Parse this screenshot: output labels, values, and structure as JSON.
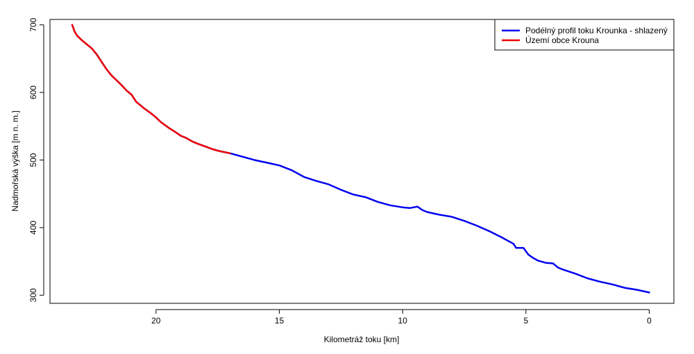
{
  "chart_data": {
    "type": "line",
    "xlabel": "Kilometráž toku [km]",
    "ylabel": "Nadmořská výška [m n. m.]",
    "xlim": [
      24.3,
      -1.0
    ],
    "ylim": [
      288,
      708
    ],
    "x_reversed": true,
    "x_ticks": [
      20,
      15,
      10,
      5,
      0
    ],
    "y_ticks": [
      300,
      400,
      500,
      600,
      700
    ],
    "grid": false,
    "legend_position": "top-right",
    "series": [
      {
        "name": "Podélný profil toku Krounka - shlazený",
        "color": "#0000ee",
        "x": [
          23.4,
          23.35,
          23.3,
          23.2,
          23.0,
          22.8,
          22.6,
          22.4,
          22.2,
          22.0,
          21.8,
          21.6,
          21.4,
          21.2,
          21.0,
          20.8,
          20.7,
          20.5,
          20.2,
          20.0,
          19.8,
          19.5,
          19.2,
          19.0,
          18.8,
          18.7,
          18.5,
          18.3,
          18.0,
          17.7,
          17.4,
          17.0,
          16.5,
          16.0,
          15.5,
          15.0,
          14.5,
          14.0,
          13.5,
          13.0,
          12.5,
          12.0,
          11.5,
          11.0,
          10.5,
          10.0,
          9.7,
          9.4,
          9.2,
          9.0,
          8.5,
          8.0,
          7.5,
          7.0,
          6.5,
          6.0,
          5.5,
          5.4,
          5.1,
          4.9,
          4.7,
          4.5,
          4.2,
          3.9,
          3.7,
          3.5,
          3.0,
          2.5,
          2.0,
          1.5,
          1.0,
          0.5,
          0.0
        ],
        "y": [
          700,
          695,
          690,
          684,
          677,
          671,
          665,
          656,
          645,
          634,
          625,
          618,
          611,
          603,
          597,
          586,
          583,
          577,
          569,
          563,
          556,
          548,
          541,
          536,
          533,
          531,
          527,
          524,
          520,
          516,
          513,
          510,
          505,
          500,
          496,
          492,
          485,
          475,
          469,
          464,
          456,
          449,
          445,
          438,
          433,
          430,
          429,
          431,
          426,
          423,
          419,
          416,
          410,
          403,
          395,
          386,
          376,
          370,
          370,
          360,
          355,
          351,
          348,
          347,
          341,
          338,
          332,
          325,
          320,
          316,
          311,
          308,
          304
        ]
      },
      {
        "name": "Území obce Krouna",
        "color": "#ee0000",
        "x": [
          23.4,
          23.35,
          23.3,
          23.2,
          23.0,
          22.8,
          22.6,
          22.4,
          22.2,
          22.0,
          21.8,
          21.6,
          21.4,
          21.2,
          21.0,
          20.8,
          20.7,
          20.5,
          20.2,
          20.0,
          19.8,
          19.5,
          19.2,
          19.0,
          18.8,
          18.7,
          18.5,
          18.3,
          18.0,
          17.7,
          17.4,
          17.0
        ],
        "y": [
          700,
          695,
          690,
          684,
          677,
          671,
          665,
          656,
          645,
          634,
          625,
          618,
          611,
          603,
          597,
          586,
          583,
          577,
          569,
          563,
          556,
          548,
          541,
          536,
          533,
          531,
          527,
          524,
          520,
          516,
          513,
          510
        ]
      }
    ]
  }
}
